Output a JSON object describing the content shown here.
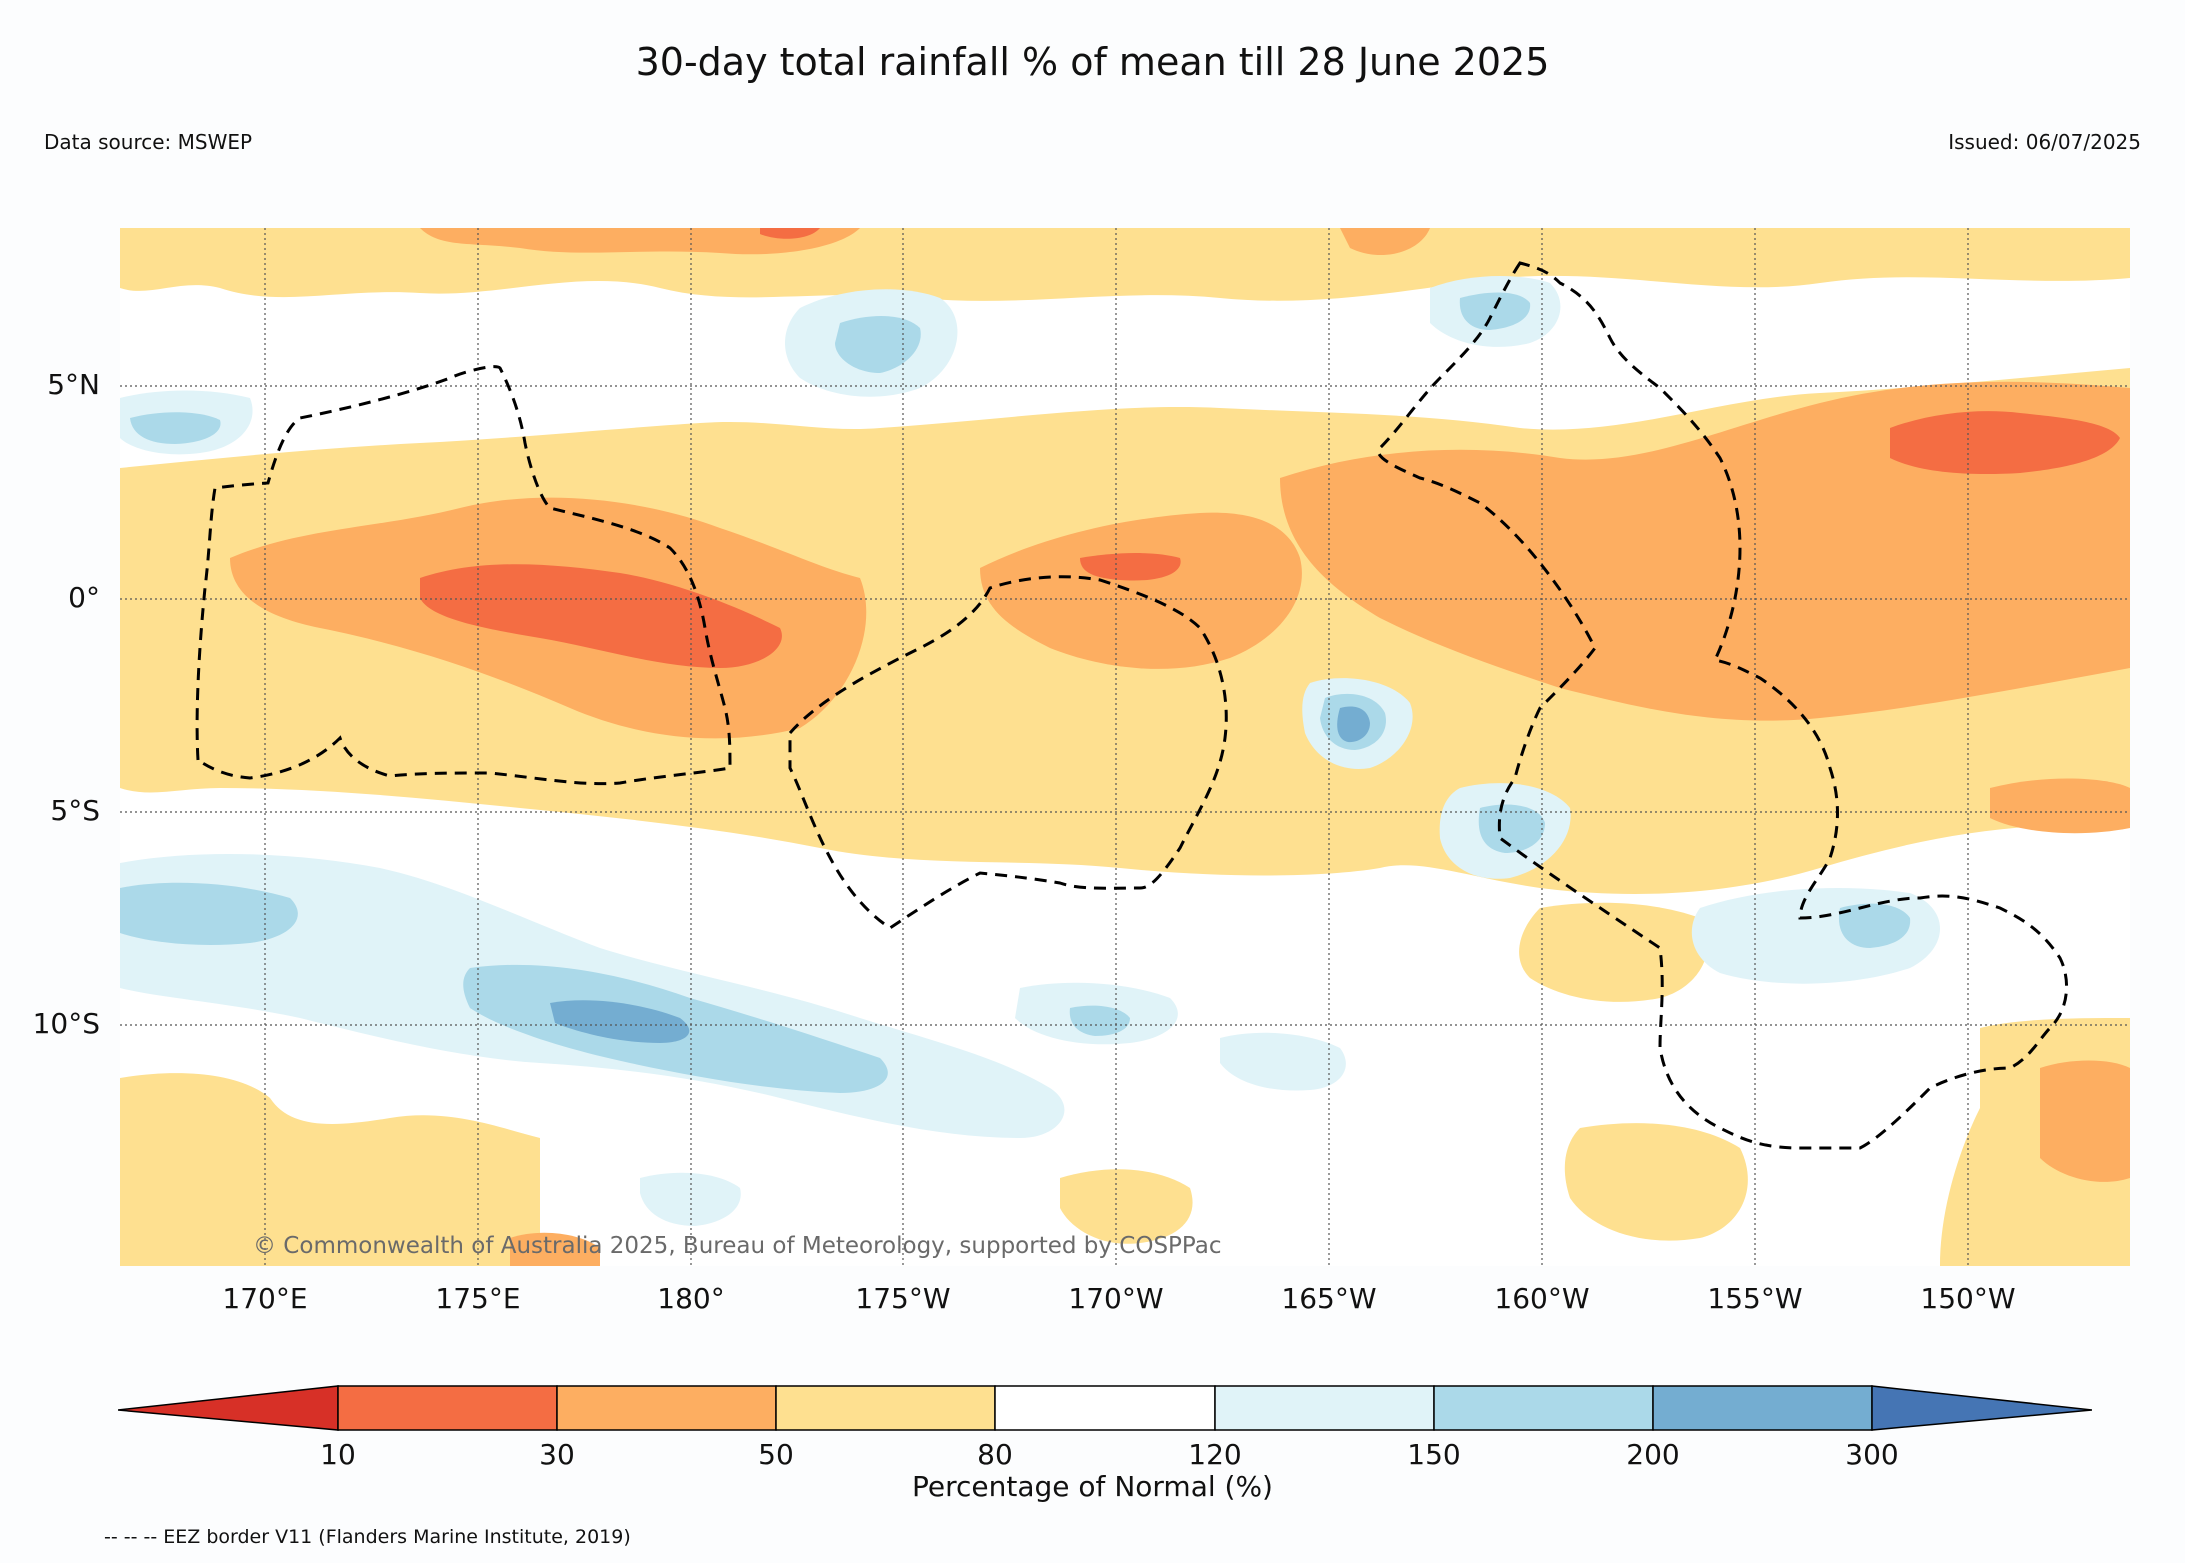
{
  "title": "30-day total rainfall % of mean till 28 June 2025",
  "data_source": "Data source: MSWEP",
  "issued": "Issued: 06/07/2025",
  "copyright": "© Commonwealth of Australia 2025, Bureau of Meteorology, supported by COSPPac",
  "lat_labels": [
    "5°N",
    "0°",
    "5°S",
    "10°S"
  ],
  "lon_labels": [
    "170°E",
    "175°E",
    "180°",
    "175°W",
    "170°W",
    "165°W",
    "160°W",
    "155°W",
    "150°W"
  ],
  "colorbar": {
    "title": "Percentage of Normal (%)",
    "ticks": [
      "10",
      "30",
      "50",
      "80",
      "120",
      "150",
      "200",
      "300"
    ],
    "colors": [
      "#d73027",
      "#f46d43",
      "#fdae61",
      "#fee090",
      "#ffffff",
      "#e0f3f8",
      "#abd9e9",
      "#74add1",
      "#4575b4"
    ]
  },
  "footnote": "-- -- -- EEZ border V11 (Flanders Marine Institute, 2019)"
}
